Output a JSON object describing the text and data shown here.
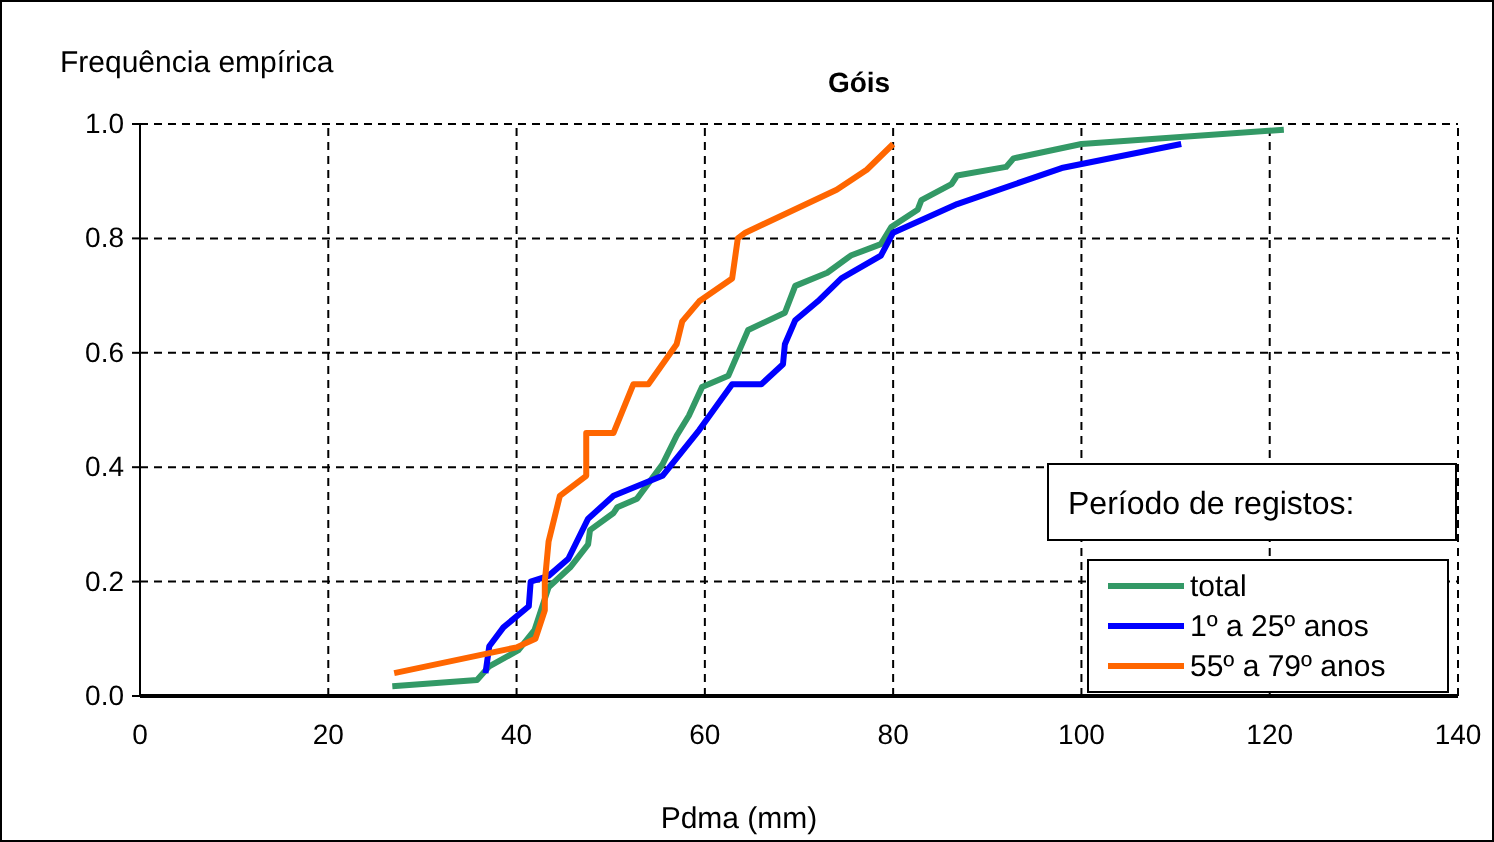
{
  "chart_data": {
    "type": "line",
    "title": "Góis",
    "xlabel": "Pdma (mm)",
    "ylabel": "Frequência empírica",
    "legend_title": "Período de registos:",
    "legend": "bottom right",
    "grid": true,
    "line_style": "solid",
    "marker": "none",
    "xlim": [
      0,
      140
    ],
    "xticks": [
      0,
      20,
      40,
      60,
      80,
      100,
      120,
      140
    ],
    "ylim": [
      0,
      1
    ],
    "yticks": [
      {
        "value": 0,
        "label": "0.0"
      },
      {
        "value": 0.2,
        "label": "0.2"
      },
      {
        "value": 0.4,
        "label": "0.4"
      },
      {
        "value": 0.6,
        "label": "0.6"
      },
      {
        "value": 0.8,
        "label": "0.8"
      },
      {
        "value": 1,
        "label": "1.0"
      }
    ],
    "series": [
      {
        "name": "total",
        "color": "#339966",
        "x": [
          26.8,
          35.8,
          37.1,
          40.2,
          41.9,
          43.4,
          45.7,
          47.6,
          47.8,
          50.3,
          50.7,
          52.8,
          55.5,
          57,
          58.3,
          59.7,
          62.5,
          64.6,
          68.5,
          69.6,
          73,
          75.5,
          78.7,
          79.8,
          82.6,
          83,
          86.2,
          86.8,
          92,
          92.8,
          100,
          121.5
        ],
        "values": [
          0.017,
          0.028,
          0.052,
          0.08,
          0.115,
          0.19,
          0.225,
          0.265,
          0.29,
          0.32,
          0.33,
          0.345,
          0.405,
          0.455,
          0.49,
          0.54,
          0.56,
          0.64,
          0.67,
          0.717,
          0.74,
          0.77,
          0.79,
          0.82,
          0.85,
          0.867,
          0.895,
          0.91,
          0.925,
          0.94,
          0.965,
          0.99
        ]
      },
      {
        "name": "1º a 25º anos",
        "color": "#0000ff",
        "x": [
          36.7,
          37.1,
          38.6,
          41.3,
          41.5,
          43.4,
          45.5,
          47.6,
          50.3,
          55.5,
          59.4,
          62.9,
          66,
          68.3,
          68.5,
          69.6,
          72,
          74.5,
          78.7,
          80,
          86.8,
          97.9,
          110.6
        ],
        "values": [
          0.04,
          0.087,
          0.12,
          0.157,
          0.2,
          0.21,
          0.24,
          0.31,
          0.35,
          0.385,
          0.465,
          0.545,
          0.545,
          0.58,
          0.615,
          0.657,
          0.69,
          0.73,
          0.77,
          0.81,
          0.86,
          0.923,
          0.965
        ]
      },
      {
        "name": "55º a 79º anos",
        "color": "#ff6600",
        "x": [
          27,
          40,
          42,
          43,
          43,
          43.4,
          44.6,
          47.4,
          47.4,
          50.3,
          52.4,
          54,
          57,
          57.6,
          59.4,
          62.9,
          63.5,
          64.3,
          74,
          77.2,
          80
        ],
        "values": [
          0.04,
          0.085,
          0.1,
          0.15,
          0.2,
          0.27,
          0.35,
          0.385,
          0.46,
          0.46,
          0.545,
          0.545,
          0.615,
          0.655,
          0.69,
          0.73,
          0.8,
          0.81,
          0.885,
          0.92,
          0.965
        ]
      }
    ]
  }
}
